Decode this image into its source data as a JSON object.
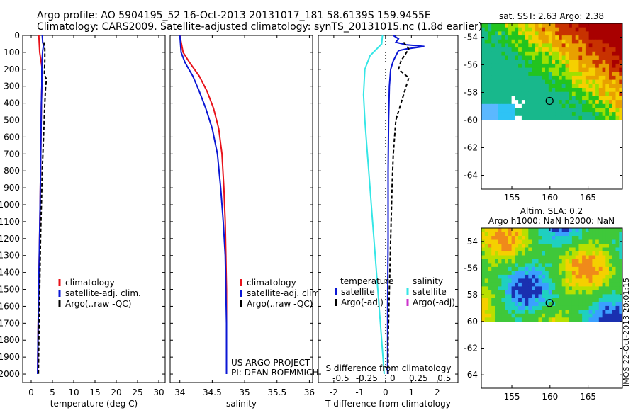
{
  "header": {
    "title_line1": "Argo profile: AO 5904195_52 16-Oct-2013 20131017_181 58.6139S 159.9455E",
    "title_line2": "Climatology: CARS2009. Satellite-adjusted climatology: synTS_20131015.nc (1.8d earlier)"
  },
  "colors": {
    "climatology": "#e8121a",
    "satellite": "#0b17d4",
    "argo": "#000000",
    "sat_salinity": "#35e6e6",
    "argo_adj_salinity": "#cc33cc"
  },
  "credit": {
    "project": "US ARGO PROJECT",
    "pi": "PI: DEAN ROEMMICH",
    "imos": "IMOS 22-Oct-2013 20:01:15"
  },
  "chart_data": [
    {
      "id": "temperature",
      "type": "line",
      "xlabel": "temperature (deg C)",
      "ylabel": "",
      "xlim": [
        -2,
        31.5
      ],
      "ylim": [
        2050,
        0
      ],
      "xticks": [
        0,
        5,
        10,
        15,
        20,
        25,
        30
      ],
      "yticks": [
        0,
        100,
        200,
        300,
        400,
        500,
        600,
        700,
        800,
        900,
        1000,
        1100,
        1200,
        1300,
        1400,
        1500,
        1600,
        1700,
        1800,
        1900,
        2000
      ],
      "legend": [
        "climatology",
        "satellite-adj. clim.",
        "Argo(..raw -QC)"
      ],
      "series": [
        {
          "name": "climatology",
          "style": "solid",
          "color_key": "climatology",
          "points": [
            [
              1.8,
              0
            ],
            [
              1.9,
              50
            ],
            [
              2.0,
              100
            ],
            [
              2.3,
              150
            ],
            [
              2.6,
              200
            ],
            [
              2.6,
              250
            ],
            [
              2.5,
              300
            ],
            [
              2.4,
              400
            ],
            [
              2.3,
              600
            ],
            [
              2.2,
              800
            ],
            [
              2.1,
              1000
            ],
            [
              1.9,
              1300
            ],
            [
              1.7,
              1600
            ],
            [
              1.6,
              1800
            ],
            [
              1.5,
              2000
            ]
          ]
        },
        {
          "name": "satellite-adj. clim.",
          "style": "solid",
          "color_key": "satellite",
          "points": [
            [
              2.6,
              0
            ],
            [
              2.7,
              40
            ],
            [
              2.9,
              60
            ],
            [
              2.7,
              90
            ],
            [
              2.6,
              130
            ],
            [
              2.5,
              200
            ],
            [
              2.5,
              300
            ],
            [
              2.4,
              400
            ],
            [
              2.3,
              600
            ],
            [
              2.2,
              800
            ],
            [
              2.1,
              1000
            ],
            [
              1.9,
              1300
            ],
            [
              1.7,
              1600
            ],
            [
              1.6,
              1800
            ],
            [
              1.5,
              2000
            ]
          ]
        },
        {
          "name": "Argo(..raw -QC)",
          "style": "dashed",
          "color_key": "argo",
          "points": [
            [
              3.0,
              40
            ],
            [
              3.2,
              80
            ],
            [
              3.2,
              150
            ],
            [
              3.1,
              230
            ],
            [
              3.6,
              260
            ],
            [
              3.4,
              300
            ],
            [
              3.2,
              400
            ],
            [
              2.9,
              600
            ],
            [
              2.6,
              800
            ],
            [
              2.4,
              1000
            ],
            [
              2.2,
              1200
            ],
            [
              2.0,
              1500
            ],
            [
              1.8,
              1800
            ],
            [
              1.7,
              2000
            ]
          ]
        }
      ]
    },
    {
      "id": "salinity",
      "type": "line",
      "xlabel": "salinity",
      "ylabel": "",
      "xlim": [
        33.85,
        36.05
      ],
      "ylim": [
        2050,
        0
      ],
      "xticks": [
        34,
        34.5,
        35,
        35.5,
        36
      ],
      "yticks": [
        0,
        100,
        200,
        300,
        400,
        500,
        600,
        700,
        800,
        900,
        1000,
        1100,
        1200,
        1300,
        1400,
        1500,
        1600,
        1700,
        1800,
        1900,
        2000
      ],
      "legend": [
        "climatology",
        "satellite-adj. clim.",
        "Argo(..raw -QC)"
      ],
      "series": [
        {
          "name": "climatology",
          "style": "solid",
          "color_key": "climatology",
          "points": [
            [
              34.0,
              0
            ],
            [
              34.05,
              100
            ],
            [
              34.15,
              160
            ],
            [
              34.3,
              240
            ],
            [
              34.42,
              330
            ],
            [
              34.52,
              430
            ],
            [
              34.6,
              550
            ],
            [
              34.65,
              700
            ],
            [
              34.68,
              900
            ],
            [
              34.7,
              1100
            ],
            [
              34.71,
              1300
            ],
            [
              34.72,
              1500
            ],
            [
              34.72,
              1700
            ],
            [
              34.72,
              2000
            ]
          ]
        },
        {
          "name": "satellite-adj. clim.",
          "style": "solid",
          "color_key": "satellite",
          "points": [
            [
              34.0,
              0
            ],
            [
              34.02,
              100
            ],
            [
              34.08,
              160
            ],
            [
              34.2,
              240
            ],
            [
              34.3,
              330
            ],
            [
              34.4,
              430
            ],
            [
              34.5,
              550
            ],
            [
              34.58,
              700
            ],
            [
              34.63,
              900
            ],
            [
              34.67,
              1100
            ],
            [
              34.7,
              1300
            ],
            [
              34.71,
              1500
            ],
            [
              34.72,
              1700
            ],
            [
              34.72,
              2000
            ]
          ]
        }
      ]
    },
    {
      "id": "difference",
      "type": "line",
      "xlabel": "T difference from climatology",
      "secondary_xlabel": "S difference from climatology",
      "xlim": [
        -2.6,
        2.8
      ],
      "ylim": [
        2050,
        0
      ],
      "xticks": [
        -2,
        -1,
        0,
        1,
        2
      ],
      "secondary_xticks": [
        -0.5,
        -0.25,
        0,
        0.25,
        0.5
      ],
      "yticks": [
        0,
        100,
        200,
        300,
        400,
        500,
        600,
        700,
        800,
        900,
        1000,
        1100,
        1200,
        1300,
        1400,
        1500,
        1600,
        1700,
        1800,
        1900,
        2000
      ],
      "legend_groups": [
        {
          "title": "temperature",
          "items": [
            "satellite",
            "Argo(-adj)"
          ]
        },
        {
          "title": "salinity",
          "items": [
            "satellite",
            "Argo(-adj)"
          ]
        }
      ],
      "series": [
        {
          "name": "temperature satellite",
          "style": "solid",
          "color_key": "satellite",
          "points": [
            [
              0.3,
              0
            ],
            [
              0.5,
              20
            ],
            [
              0.4,
              40
            ],
            [
              0.8,
              55
            ],
            [
              1.5,
              65
            ],
            [
              0.8,
              80
            ],
            [
              0.5,
              90
            ],
            [
              0.4,
              120
            ],
            [
              0.3,
              150
            ],
            [
              0.2,
              200
            ],
            [
              0.15,
              300
            ],
            [
              0.12,
              500
            ],
            [
              0.1,
              800
            ],
            [
              0.1,
              1200
            ],
            [
              0.08,
              1600
            ],
            [
              0.08,
              2000
            ]
          ]
        },
        {
          "name": "temperature Argo(-adj)",
          "style": "dashed",
          "color_key": "argo",
          "points": [
            [
              0.7,
              40
            ],
            [
              0.9,
              80
            ],
            [
              0.6,
              150
            ],
            [
              0.5,
              200
            ],
            [
              0.9,
              250
            ],
            [
              0.8,
              300
            ],
            [
              0.6,
              400
            ],
            [
              0.4,
              500
            ],
            [
              0.3,
              700
            ],
            [
              0.25,
              900
            ],
            [
              0.2,
              1200
            ],
            [
              0.15,
              1500
            ],
            [
              0.1,
              1800
            ],
            [
              0.1,
              2000
            ]
          ]
        },
        {
          "name": "salinity satellite",
          "style": "solid",
          "color_key": "sat_salinity",
          "points": [
            [
              -0.12,
              0
            ],
            [
              -0.15,
              50
            ],
            [
              -0.6,
              120
            ],
            [
              -0.8,
              200
            ],
            [
              -0.85,
              350
            ],
            [
              -0.8,
              500
            ],
            [
              -0.7,
              700
            ],
            [
              -0.6,
              900
            ],
            [
              -0.5,
              1100
            ],
            [
              -0.4,
              1300
            ],
            [
              -0.3,
              1500
            ],
            [
              -0.2,
              1700
            ],
            [
              -0.1,
              1900
            ],
            [
              -0.05,
              2000
            ]
          ]
        }
      ]
    },
    {
      "id": "sst-map",
      "type": "heatmap",
      "title": "sat. SST: 2.63 Argo: 2.38",
      "xlim": [
        151,
        169.5
      ],
      "ylim": [
        -65,
        -53
      ],
      "xticks": [
        155,
        160,
        165
      ],
      "yticks": [
        -54,
        -56,
        -58,
        -60,
        -62,
        -64
      ],
      "xtick_labels": [
        "155",
        "160",
        "165"
      ],
      "ytick_labels": [
        "-54",
        "-56",
        "-58",
        "-60",
        "-62",
        "-64"
      ],
      "float_position": {
        "lon": 159.9455,
        "lat": -58.6139
      }
    },
    {
      "id": "sla-map",
      "type": "heatmap",
      "title": "Altim. SLA: 0.2",
      "subtitle": "Argo h1000: NaN h2000: NaN",
      "xlim": [
        151,
        169.5
      ],
      "ylim": [
        -65,
        -53
      ],
      "xticks": [
        155,
        160,
        165
      ],
      "yticks": [
        -54,
        -56,
        -58,
        -60,
        -62,
        -64
      ],
      "xtick_labels": [
        "155",
        "160",
        "165"
      ],
      "ytick_labels": [
        "-54",
        "-56",
        "-58",
        "-60",
        "-62",
        "-64"
      ],
      "float_position": {
        "lon": 159.9455,
        "lat": -58.6139
      }
    }
  ]
}
